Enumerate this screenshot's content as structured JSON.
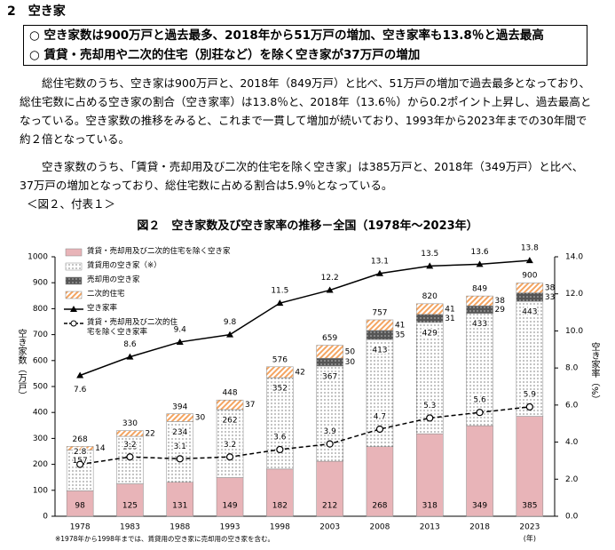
{
  "header": {
    "section": "2　空き家"
  },
  "summary": [
    "○ 空き家数は900万戸と過去最多、2018年から51万戸の増加、空き家率も13.8％と過去最高",
    "○ 賃貸・売却用や二次的住宅（別荘など）を除く空き家が37万戸の増加"
  ],
  "paragraphs": [
    "総住宅数のうち、空き家は900万戸と、2018年（849万戸）と比べ、51万戸の増加で過去最多となっており、総住宅数に占める空き家の割合（空き家率）は13.8％と、2018年（13.6％）から0.2ポイント上昇し、過去最高となっている。空き家数の推移をみると、これまで一貫して増加が続いており、1993年から2023年までの30年間で約２倍となっている。",
    "空き家数のうち、「賃貸・売却用及び二次的住宅を除く空き家」は385万戸と、2018年（349万戸）と比べ、37万戸の増加となっており、総住宅数に占める割合は5.9％となっている。"
  ],
  "reference": "＜図２、付表１＞",
  "chart_data": {
    "type": "bar",
    "stacked": true,
    "title": "図２　空き家数及び空き家率の推移－全国（1978年～2023年）",
    "ylabel": "空き家数（万戸）",
    "y2label": "空き家率（%）",
    "x_unit": "(年)",
    "note": "※1978年から1998年までは、賃貸用の空き家に売却用の空き家を含む。",
    "categories": [
      "1978",
      "1983",
      "1988",
      "1993",
      "1998",
      "2003",
      "2008",
      "2013",
      "2018",
      "2023"
    ],
    "series": [
      {
        "name": "賃貸・売却用及び二次的住宅を除く空き家",
        "color": "#e8b4b8",
        "pattern": "solid",
        "values": [
          98,
          125,
          131,
          149,
          182,
          212,
          268,
          318,
          349,
          385
        ]
      },
      {
        "name": "賃貸用の空き家（※）",
        "color": "#ffffff",
        "pattern": "dots",
        "values": [
          157,
          183,
          234,
          262,
          352,
          367,
          413,
          429,
          433,
          443
        ]
      },
      {
        "name": "売却用の空き家",
        "color": "#555555",
        "pattern": "dots",
        "values": [
          null,
          null,
          null,
          null,
          null,
          30,
          35,
          31,
          29,
          33
        ]
      },
      {
        "name": "二次的住宅",
        "color": "#f4a460",
        "pattern": "stripes",
        "values": [
          14,
          22,
          30,
          37,
          42,
          50,
          41,
          41,
          38,
          38
        ]
      },
      {
        "name": "空き家率",
        "type": "line",
        "axis": "y2",
        "color": "#000000",
        "marker": "triangle",
        "dashed": false,
        "values": [
          7.6,
          8.6,
          9.4,
          9.8,
          11.5,
          12.2,
          13.1,
          13.5,
          13.6,
          13.8
        ]
      },
      {
        "name": "賃貸・売却用及び二次的住宅を除く空き家率",
        "type": "line",
        "axis": "y2",
        "color": "#000000",
        "marker": "circle",
        "dashed": true,
        "values": [
          2.8,
          3.2,
          3.1,
          3.2,
          3.6,
          3.9,
          4.7,
          5.3,
          5.6,
          5.9
        ]
      }
    ],
    "totals": [
      268,
      330,
      394,
      448,
      576,
      659,
      757,
      820,
      849,
      900
    ],
    "ylim": [
      0,
      1000
    ],
    "yticks": [
      0,
      100,
      200,
      300,
      400,
      500,
      600,
      700,
      800,
      900,
      1000
    ],
    "y2lim": [
      0,
      14
    ],
    "y2ticks": [
      {
        "value": 0,
        "label": "0.0"
      },
      {
        "value": 2,
        "label": "2.0"
      },
      {
        "value": 4,
        "label": "4.0"
      },
      {
        "value": 6,
        "label": "6.0"
      },
      {
        "value": 8,
        "label": "8.0"
      },
      {
        "value": 10,
        "label": "10.0"
      },
      {
        "value": 12,
        "label": "12.0"
      },
      {
        "value": 14,
        "label": "14.0"
      }
    ]
  }
}
